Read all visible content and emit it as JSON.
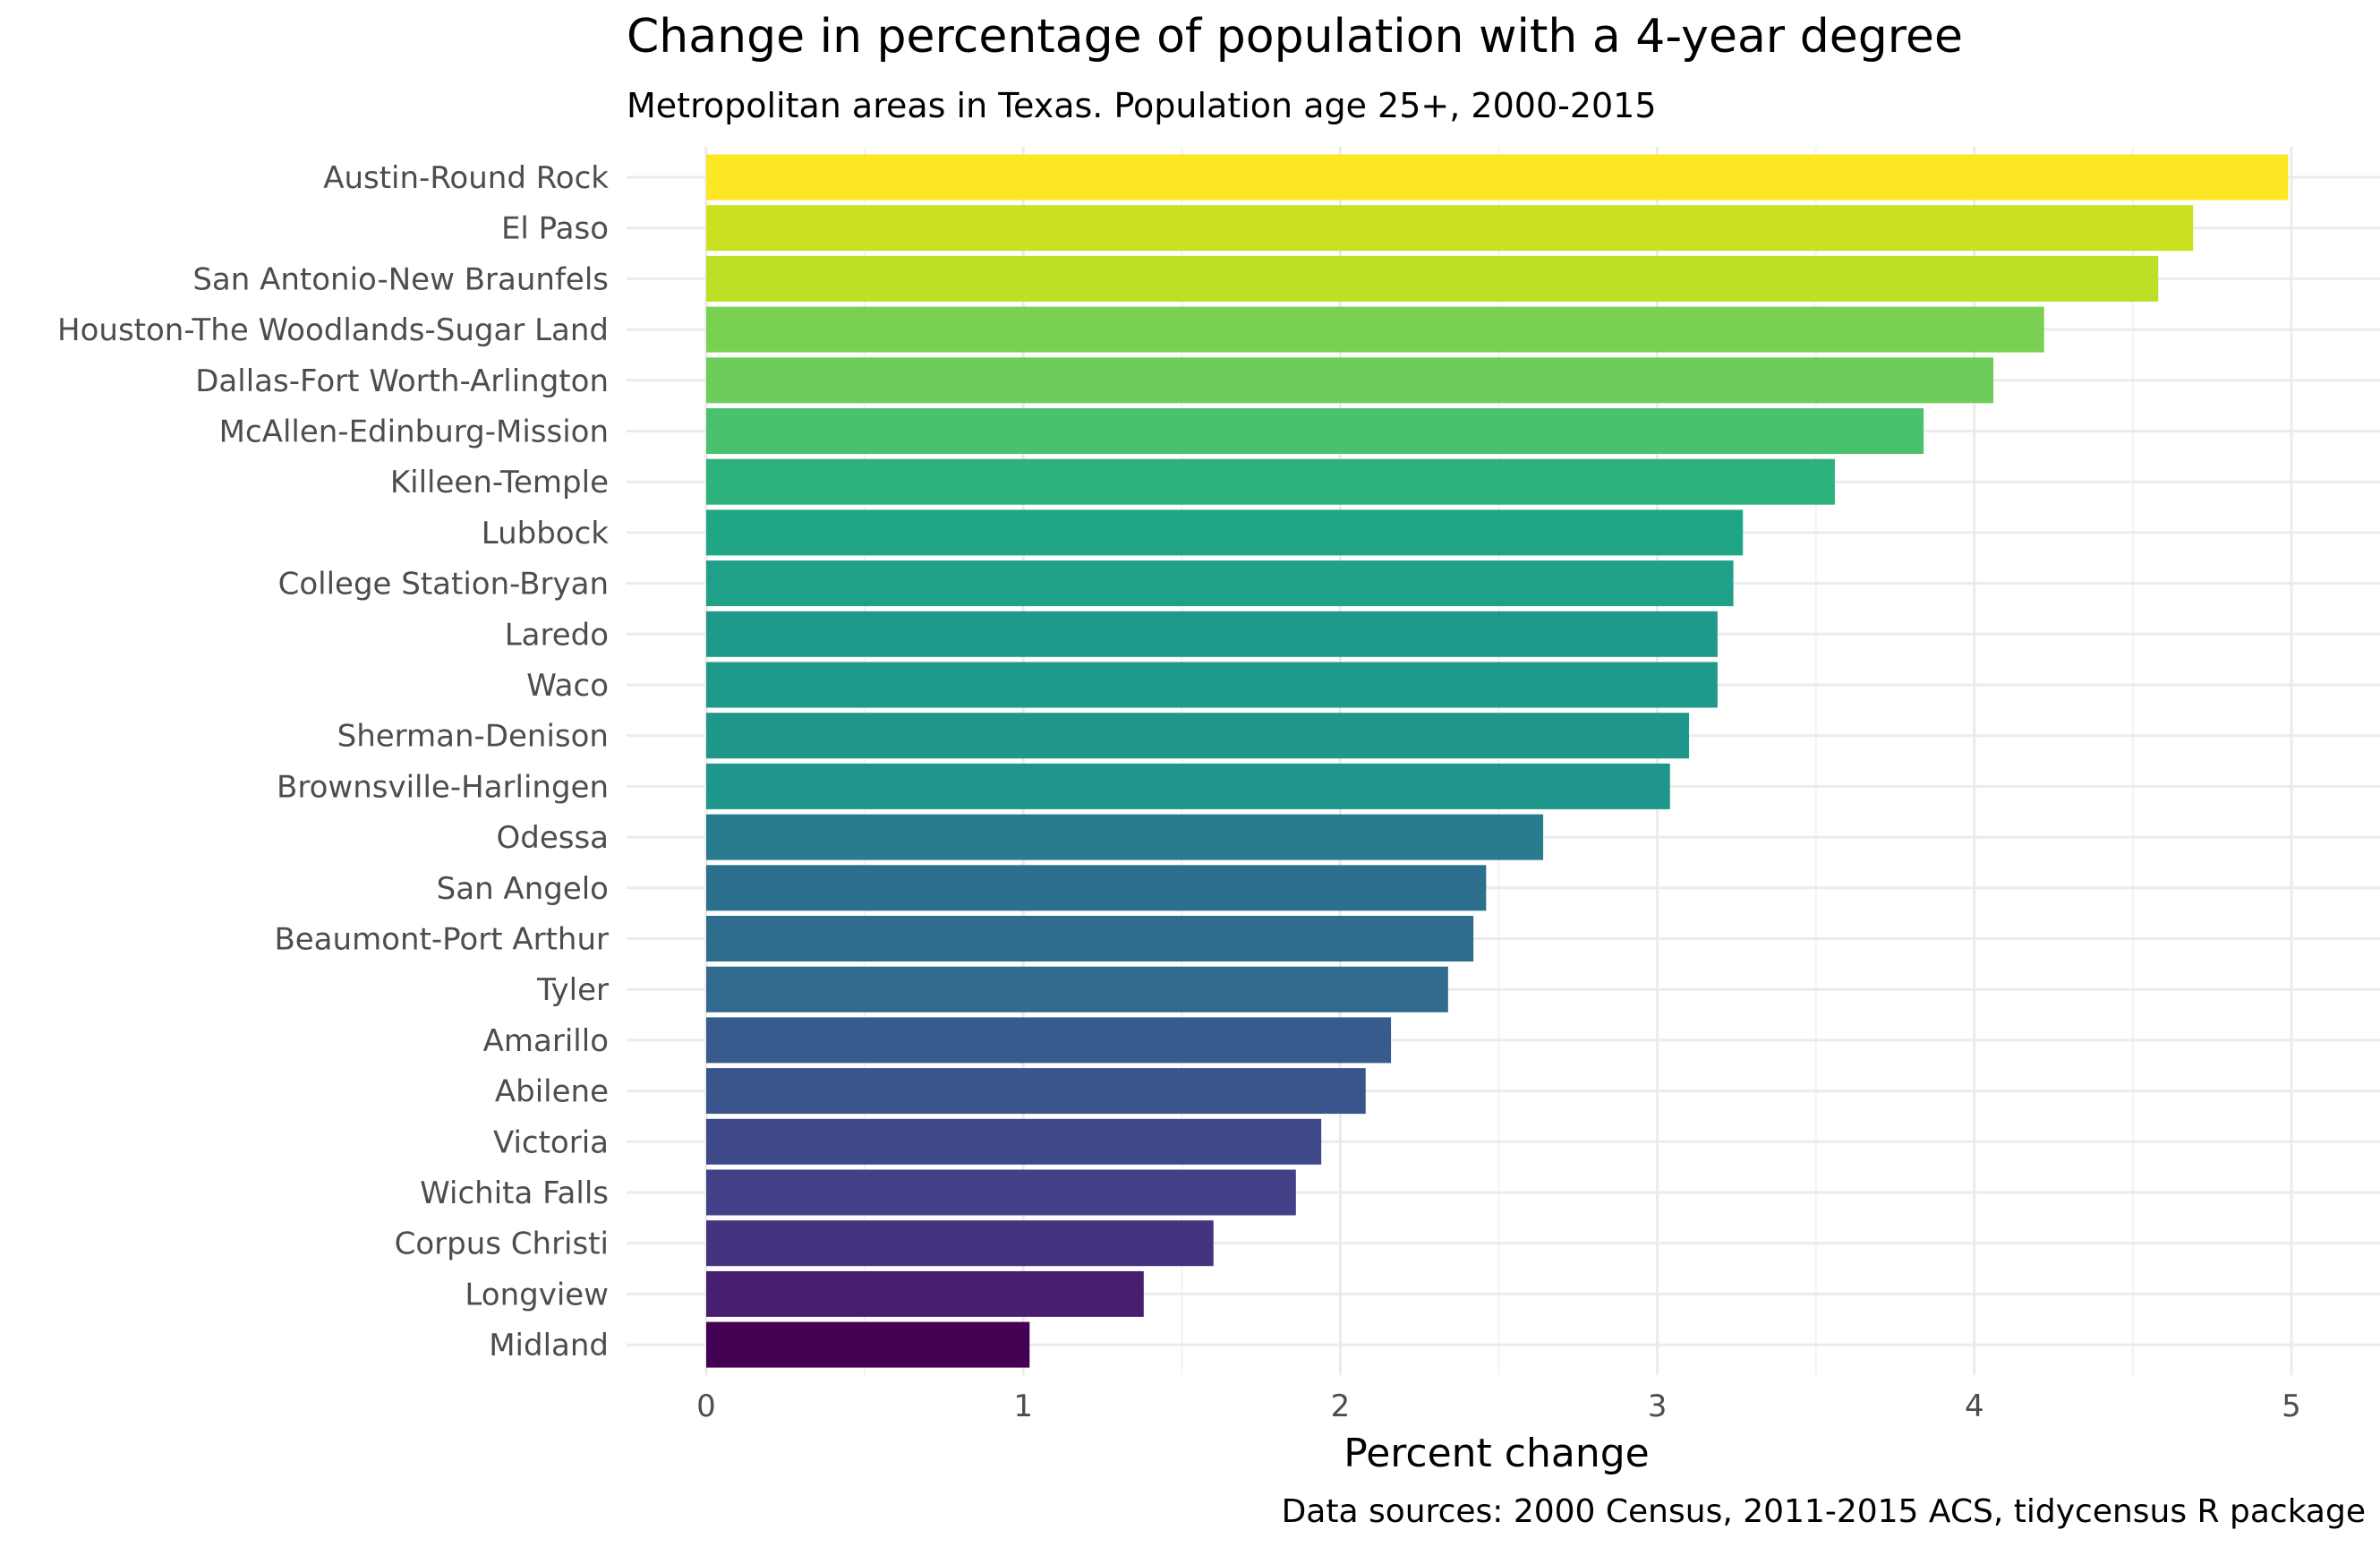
{
  "chart_data": {
    "type": "bar",
    "orientation": "horizontal",
    "title": "Change in percentage of population with a 4-year degree",
    "subtitle": "Metropolitan areas in Texas. Population age 25+, 2000-2015",
    "xlabel": "Percent change",
    "ylabel": "",
    "caption": "Data sources: 2000 Census, 2011-2015 ACS, tidycensus R package",
    "xlim": [
      0,
      5.2
    ],
    "xticks": [
      "0",
      "1",
      "2",
      "3",
      "4",
      "5"
    ],
    "grid": true,
    "legend": "none",
    "colormap": "viridis",
    "categories": [
      "Austin-Round Rock",
      "El Paso",
      "San Antonio-New Braunfels",
      "Houston-The Woodlands-Sugar Land",
      "Dallas-Fort Worth-Arlington",
      "McAllen-Edinburg-Mission",
      "Killeen-Temple",
      "Lubbock",
      "College Station-Bryan",
      "Laredo",
      "Waco",
      "Sherman-Denison",
      "Brownsville-Harlingen",
      "Odessa",
      "San Angelo",
      "Beaumont-Port Arthur",
      "Tyler",
      "Amarillo",
      "Abilene",
      "Victoria",
      "Wichita Falls",
      "Corpus Christi",
      "Longview",
      "Midland"
    ],
    "values": [
      4.99,
      4.69,
      4.58,
      4.22,
      4.06,
      3.84,
      3.56,
      3.27,
      3.24,
      3.19,
      3.19,
      3.1,
      3.04,
      2.64,
      2.46,
      2.42,
      2.34,
      2.16,
      2.08,
      1.94,
      1.86,
      1.6,
      1.38,
      1.02
    ],
    "colors": [
      "#fde725",
      "#cae11f",
      "#bddf26",
      "#7ad151",
      "#6ccd5a",
      "#4ac16d",
      "#2db27d",
      "#21a685",
      "#1fa088",
      "#1f9a8a",
      "#1f9a8a",
      "#1f988b",
      "#1f968b",
      "#287c8e",
      "#2d708e",
      "#2e6d8e",
      "#306a8e",
      "#375b8d",
      "#3a548c",
      "#3f4889",
      "#424086",
      "#46337f",
      "#481f70",
      "#440154"
    ]
  }
}
